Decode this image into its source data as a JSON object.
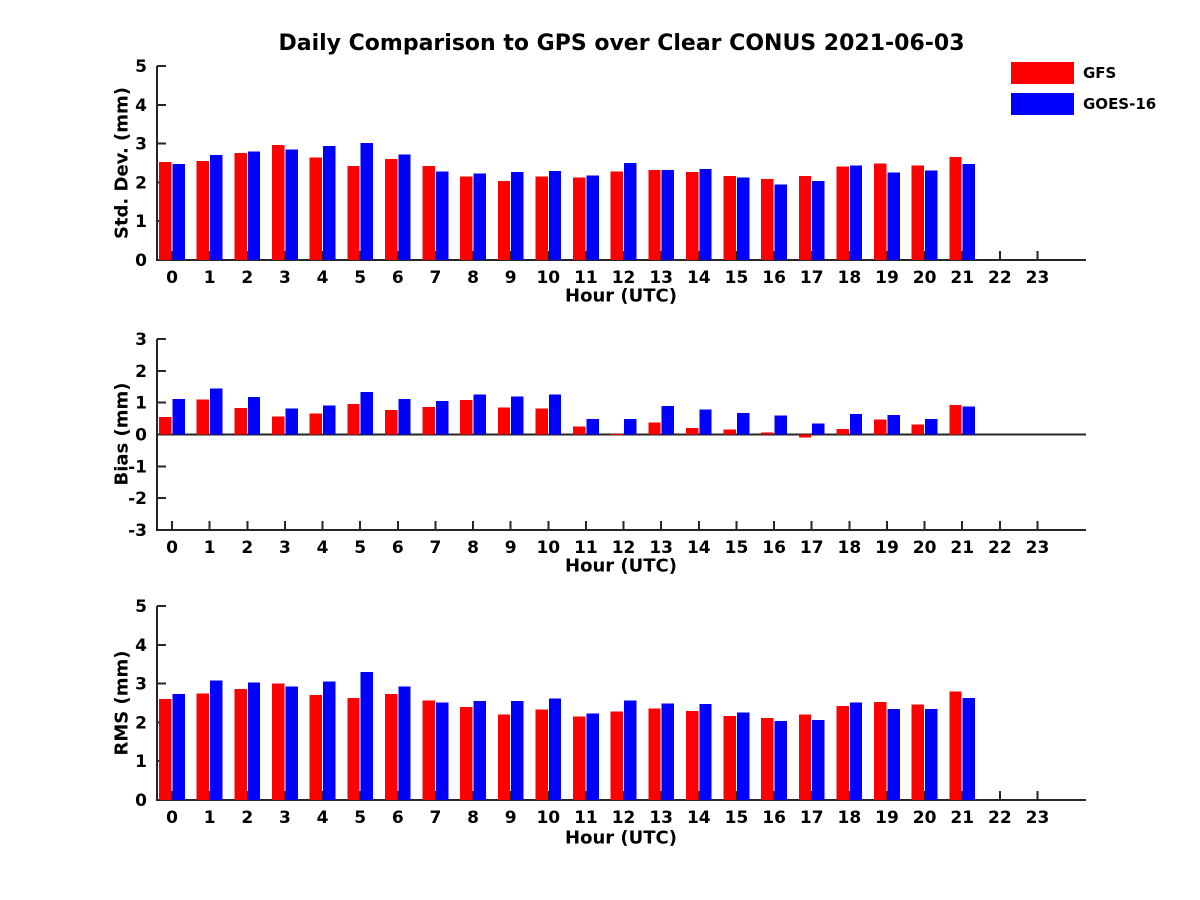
{
  "title": "Daily Comparison to GPS over Clear CONUS 2021-06-03",
  "legend": {
    "position": "top-right-outside",
    "items": [
      {
        "label": "GFS",
        "color": "#ff0000"
      },
      {
        "label": "GOES-16",
        "color": "#0000ff"
      }
    ]
  },
  "axis_color": "#262626",
  "chart_data": [
    {
      "type": "bar",
      "name": "std-dev-subplot",
      "ylabel": "Std. Dev. (mm)",
      "xlabel": "Hour (UTC)",
      "categories": [
        0,
        1,
        2,
        3,
        4,
        5,
        6,
        7,
        8,
        9,
        10,
        11,
        12,
        13,
        14,
        15,
        16,
        17,
        18,
        19,
        20,
        21,
        22,
        23
      ],
      "ylim": [
        0,
        5
      ],
      "yticks": [
        0,
        1,
        2,
        3,
        4,
        5
      ],
      "grid": false,
      "series": [
        {
          "name": "GFS",
          "color": "#ff0000",
          "values": [
            2.52,
            2.55,
            2.76,
            2.96,
            2.64,
            2.42,
            2.6,
            2.42,
            2.15,
            2.03,
            2.15,
            2.13,
            2.28,
            2.32,
            2.27,
            2.17,
            2.09,
            2.17,
            2.41,
            2.49,
            2.44,
            2.66,
            null,
            null
          ]
        },
        {
          "name": "GOES-16",
          "color": "#0000ff",
          "values": [
            2.47,
            2.71,
            2.8,
            2.85,
            2.94,
            3.01,
            2.72,
            2.28,
            2.23,
            2.27,
            2.29,
            2.18,
            2.5,
            2.32,
            2.35,
            2.12,
            1.95,
            2.04,
            2.44,
            2.26,
            2.31,
            2.47,
            null,
            null
          ]
        }
      ]
    },
    {
      "type": "bar",
      "name": "bias-subplot",
      "ylabel": "Bias (mm)",
      "xlabel": "Hour (UTC)",
      "categories": [
        0,
        1,
        2,
        3,
        4,
        5,
        6,
        7,
        8,
        9,
        10,
        11,
        12,
        13,
        14,
        15,
        16,
        17,
        18,
        19,
        20,
        21,
        22,
        23
      ],
      "ylim": [
        -3,
        3
      ],
      "yticks": [
        -3,
        -2,
        -1,
        0,
        1,
        2,
        3
      ],
      "grid": false,
      "zero_line": true,
      "series": [
        {
          "name": "GFS",
          "color": "#ff0000",
          "values": [
            0.55,
            1.1,
            0.83,
            0.56,
            0.66,
            0.96,
            0.77,
            0.87,
            1.08,
            0.85,
            0.82,
            0.25,
            0.02,
            0.38,
            0.2,
            0.16,
            0.06,
            -0.1,
            0.18,
            0.47,
            0.32,
            0.92,
            null,
            null
          ]
        },
        {
          "name": "GOES-16",
          "color": "#0000ff",
          "values": [
            1.12,
            1.45,
            1.18,
            0.82,
            0.91,
            1.33,
            1.12,
            1.06,
            1.26,
            1.2,
            1.25,
            0.49,
            0.48,
            0.9,
            0.78,
            0.68,
            0.6,
            0.35,
            0.64,
            0.62,
            0.48,
            0.88,
            null,
            null
          ]
        }
      ]
    },
    {
      "type": "bar",
      "name": "rms-subplot",
      "ylabel": "RMS (mm)",
      "xlabel": "Hour (UTC)",
      "categories": [
        0,
        1,
        2,
        3,
        4,
        5,
        6,
        7,
        8,
        9,
        10,
        11,
        12,
        13,
        14,
        15,
        16,
        17,
        18,
        19,
        20,
        21,
        22,
        23
      ],
      "ylim": [
        0,
        5
      ],
      "yticks": [
        0,
        1,
        2,
        3,
        4,
        5
      ],
      "grid": false,
      "series": [
        {
          "name": "GFS",
          "color": "#ff0000",
          "values": [
            2.6,
            2.75,
            2.86,
            3.0,
            2.71,
            2.63,
            2.73,
            2.57,
            2.4,
            2.2,
            2.33,
            2.15,
            2.28,
            2.36,
            2.3,
            2.16,
            2.11,
            2.2,
            2.42,
            2.53,
            2.46,
            2.8,
            null,
            null
          ]
        },
        {
          "name": "GOES-16",
          "color": "#0000ff",
          "values": [
            2.73,
            3.08,
            3.03,
            2.93,
            3.06,
            3.3,
            2.93,
            2.51,
            2.55,
            2.55,
            2.61,
            2.23,
            2.56,
            2.49,
            2.47,
            2.25,
            2.04,
            2.06,
            2.51,
            2.35,
            2.35,
            2.63,
            null,
            null
          ]
        }
      ]
    }
  ]
}
